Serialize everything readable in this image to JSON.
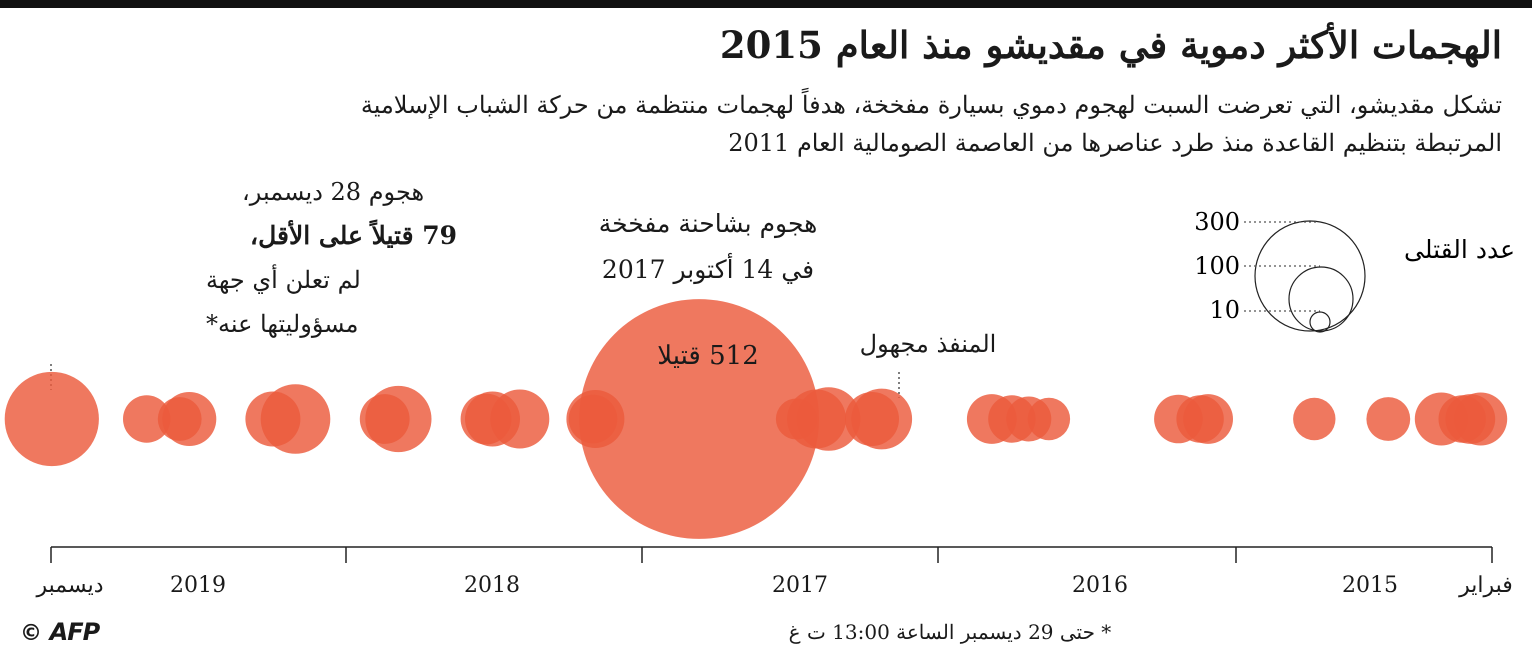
{
  "title": "الهجمات الأكثر دموية في مقديشو منذ العام 2015",
  "subtitle": {
    "line1": "تشكل مقديشو، التي تعرضت السبت لهجوم دموي بسيارة مفخخة، هدفاً لهجمات منتظمة من حركة الشباب الإسلامية",
    "line2": "المرتبطة بتنظيم القاعدة منذ طرد عناصرها من العاصمة الصومالية العام 2011"
  },
  "annotations": {
    "dec28": {
      "l1": "هجوم 28 ديسمبر،",
      "l2": "79 قتيلاً على الأقل،",
      "l3": "لم تعلن أي جهة",
      "l4": "مسؤوليتها عنه*"
    },
    "oct14": {
      "l1": "هجوم بشاحنة مفخخة",
      "l2": "في 14 أكتوبر 2017",
      "deaths": "512 قتيلا"
    },
    "unknown": "المنفذ مجهول"
  },
  "legend": {
    "title": "عدد القتلى",
    "values": [
      "300",
      "100",
      "10"
    ]
  },
  "footnote": "* حتى 29 ديسمبر الساعة 13:00 ت غ",
  "credit": {
    "symbol": "©",
    "logo": "AFP"
  },
  "colors": {
    "bubble": "#ec5a3c",
    "highlight": "#d81d10",
    "axis": "#222222"
  },
  "chart_data": {
    "type": "scatter",
    "x_axis_direction": "right-to-left (newest at left)",
    "x_axis_labels": [
      "ديسمبر",
      "2019",
      "2018",
      "2017",
      "2016",
      "2015",
      "فبراير"
    ],
    "size_metric": "عدد القتلى",
    "points": [
      {
        "date": "2019-12-28",
        "deaths": 79
      },
      {
        "date": "2019-09-01",
        "deaths": 20
      },
      {
        "date": "2019-07-22",
        "deaths": 17
      },
      {
        "date": "2019-07-10",
        "deaths": 26
      },
      {
        "date": "2019-03-28",
        "deaths": 27
      },
      {
        "date": "2019-02-28",
        "deaths": 43
      },
      {
        "date": "2018-11-09",
        "deaths": 22
      },
      {
        "date": "2018-10-23",
        "deaths": 39
      },
      {
        "date": "2018-07-06",
        "deaths": 23
      },
      {
        "date": "2018-06-28",
        "deaths": 27
      },
      {
        "date": "2018-05-25",
        "deaths": 31
      },
      {
        "date": "2018-02-23",
        "deaths": 21
      },
      {
        "date": "2018-02-20",
        "deaths": 30
      },
      {
        "date": "2017-10-14",
        "deaths": 512
      },
      {
        "date": "2017-06-15",
        "deaths": 15
      },
      {
        "date": "2017-05-21",
        "deaths": 31
      },
      {
        "date": "2017-05-06",
        "deaths": 36
      },
      {
        "date": "2017-03-13",
        "deaths": 26
      },
      {
        "date": "2017-03-01",
        "deaths": 33
      },
      {
        "date": "2016-10-15",
        "deaths": 22
      },
      {
        "date": "2016-09-20",
        "deaths": 20
      },
      {
        "date": "2016-08-30",
        "deaths": 18
      },
      {
        "date": "2016-08-05",
        "deaths": 16
      },
      {
        "date": "2016-02-26",
        "deaths": 21
      },
      {
        "date": "2016-01-30",
        "deaths": 20
      },
      {
        "date": "2016-01-20",
        "deaths": 22
      },
      {
        "date": "2015-09-10",
        "deaths": 16
      },
      {
        "date": "2015-06-10",
        "deaths": 17
      },
      {
        "date": "2015-04-05",
        "deaths": 25
      },
      {
        "date": "2015-03-10",
        "deaths": 20
      },
      {
        "date": "2015-02-28",
        "deaths": 22
      },
      {
        "date": "2015-02-15",
        "deaths": 25
      }
    ]
  }
}
